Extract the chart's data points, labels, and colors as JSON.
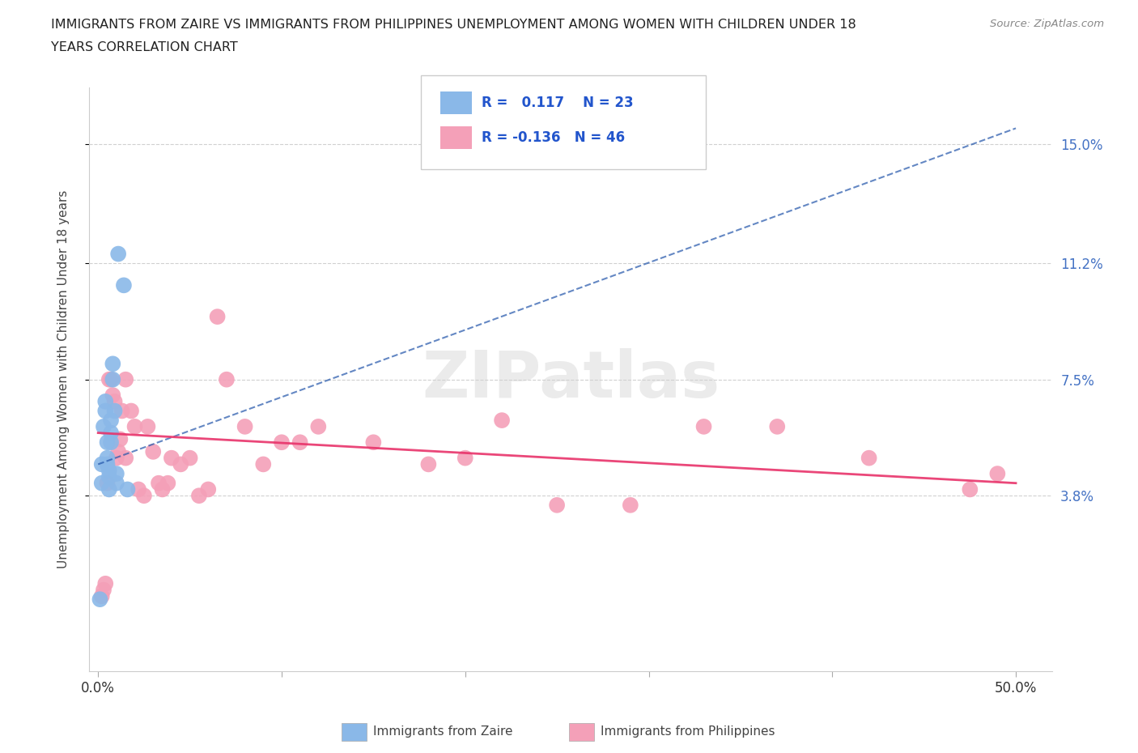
{
  "title_line1": "IMMIGRANTS FROM ZAIRE VS IMMIGRANTS FROM PHILIPPINES UNEMPLOYMENT AMONG WOMEN WITH CHILDREN UNDER 18",
  "title_line2": "YEARS CORRELATION CHART",
  "source": "Source: ZipAtlas.com",
  "ylabel": "Unemployment Among Women with Children Under 18 years",
  "xlim": [
    -0.005,
    0.52
  ],
  "ylim": [
    -0.018,
    0.168
  ],
  "xtick_positions": [
    0.0,
    0.1,
    0.2,
    0.3,
    0.4,
    0.5
  ],
  "xticklabels": [
    "0.0%",
    "",
    "",
    "",
    "",
    "50.0%"
  ],
  "ytick_positions": [
    0.038,
    0.075,
    0.112,
    0.15
  ],
  "ytick_labels": [
    "3.8%",
    "7.5%",
    "11.2%",
    "15.0%"
  ],
  "zaire_R": 0.117,
  "zaire_N": 23,
  "phil_R": -0.136,
  "phil_N": 46,
  "zaire_color": "#8ab8e8",
  "phil_color": "#f4a0b8",
  "zaire_line_color": "#2255aa",
  "phil_line_color": "#e8336a",
  "background_color": "#ffffff",
  "grid_color": "#d0d0d0",
  "zaire_x": [
    0.001,
    0.002,
    0.002,
    0.003,
    0.004,
    0.004,
    0.005,
    0.005,
    0.005,
    0.006,
    0.006,
    0.006,
    0.007,
    0.007,
    0.007,
    0.008,
    0.008,
    0.009,
    0.01,
    0.01,
    0.011,
    0.014,
    0.016
  ],
  "zaire_y": [
    0.005,
    0.042,
    0.048,
    0.06,
    0.065,
    0.068,
    0.048,
    0.05,
    0.055,
    0.04,
    0.044,
    0.046,
    0.055,
    0.058,
    0.062,
    0.075,
    0.08,
    0.065,
    0.042,
    0.045,
    0.115,
    0.105,
    0.04
  ],
  "phil_x": [
    0.002,
    0.003,
    0.004,
    0.005,
    0.006,
    0.007,
    0.008,
    0.009,
    0.01,
    0.011,
    0.012,
    0.013,
    0.015,
    0.015,
    0.018,
    0.02,
    0.022,
    0.025,
    0.027,
    0.03,
    0.033,
    0.035,
    0.038,
    0.04,
    0.045,
    0.05,
    0.055,
    0.06,
    0.065,
    0.07,
    0.08,
    0.09,
    0.1,
    0.11,
    0.12,
    0.15,
    0.18,
    0.2,
    0.22,
    0.25,
    0.29,
    0.33,
    0.37,
    0.42,
    0.475,
    0.49
  ],
  "phil_y": [
    0.006,
    0.008,
    0.01,
    0.042,
    0.075,
    0.075,
    0.07,
    0.068,
    0.05,
    0.052,
    0.056,
    0.065,
    0.05,
    0.075,
    0.065,
    0.06,
    0.04,
    0.038,
    0.06,
    0.052,
    0.042,
    0.04,
    0.042,
    0.05,
    0.048,
    0.05,
    0.038,
    0.04,
    0.095,
    0.075,
    0.06,
    0.048,
    0.055,
    0.055,
    0.06,
    0.055,
    0.048,
    0.05,
    0.062,
    0.035,
    0.035,
    0.06,
    0.06,
    0.05,
    0.04,
    0.045
  ],
  "zaire_trend_x": [
    0.0,
    0.5
  ],
  "zaire_trend_y_start": 0.048,
  "zaire_trend_y_end": 0.155,
  "phil_trend_x": [
    0.0,
    0.5
  ],
  "phil_trend_y_start": 0.058,
  "phil_trend_y_end": 0.042
}
